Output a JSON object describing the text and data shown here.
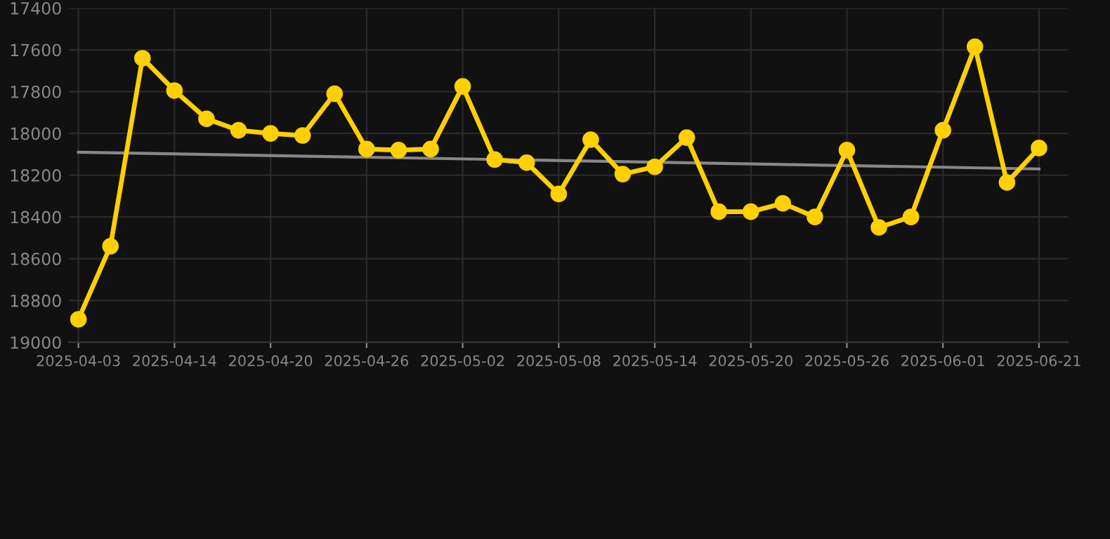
{
  "chart_data": {
    "type": "line",
    "categories": [
      "2025-04-03",
      null,
      null,
      "2025-04-14",
      null,
      null,
      "2025-04-20",
      null,
      null,
      "2025-04-26",
      null,
      null,
      "2025-05-02",
      null,
      null,
      "2025-05-08",
      null,
      null,
      "2025-05-14",
      null,
      null,
      "2025-05-20",
      null,
      null,
      "2025-05-26",
      null,
      null,
      "2025-06-01",
      null,
      null,
      "2025-06-21"
    ],
    "series": [
      {
        "color": "#ffd000",
        "marker": "circle",
        "values": [
          18890,
          18540,
          17640,
          17795,
          17930,
          17985,
          18000,
          18010,
          17810,
          18075,
          18080,
          18075,
          17775,
          18125,
          18140,
          18290,
          18030,
          18195,
          18160,
          18020,
          18375,
          18375,
          18335,
          18400,
          18080,
          18450,
          18400,
          17985,
          17585,
          18235,
          18070
        ]
      },
      {
        "color": "#888888",
        "marker": "none",
        "values": [
          18090,
          null,
          null,
          null,
          null,
          null,
          null,
          null,
          null,
          null,
          null,
          null,
          null,
          null,
          null,
          null,
          null,
          null,
          null,
          null,
          null,
          null,
          null,
          null,
          null,
          null,
          null,
          null,
          null,
          null,
          18170
        ]
      }
    ],
    "ylim": [
      19000,
      17400
    ],
    "yticks": [
      17400,
      17600,
      17800,
      18000,
      18200,
      18400,
      18600,
      18800,
      19000
    ],
    "grid": true,
    "line_style": "solid"
  }
}
